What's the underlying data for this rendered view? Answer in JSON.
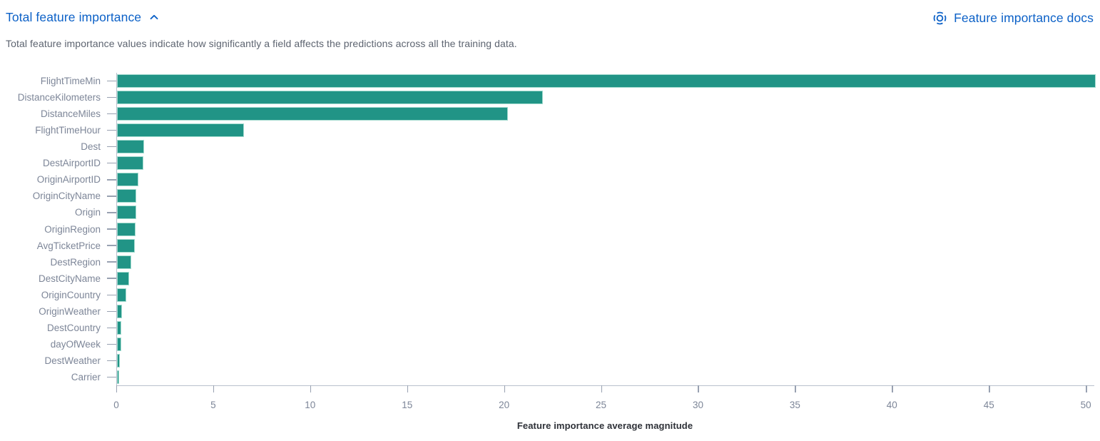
{
  "header": {
    "title": "Total feature importance",
    "docs_link_label": "Feature importance docs"
  },
  "description": "Total feature importance values indicate how significantly a field affects the predictions across all the training data.",
  "icons": {
    "collapse": "chevron-up-icon",
    "docs": "help-lifering-icon"
  },
  "colors": {
    "accent_blue": "#0c61c7",
    "bar_fill": "#219486",
    "bar_edge": "#a3dbcf",
    "axis_line": "#b9c0cd",
    "label_text": "#7d8698",
    "axis_title_text": "#2e3138"
  },
  "chart_data": {
    "type": "bar",
    "orientation": "horizontal",
    "title": "",
    "xlabel": "Feature importance average magnitude",
    "ylabel": "",
    "categories": [
      "FlightTimeMin",
      "DistanceKilometers",
      "DistanceMiles",
      "FlightTimeHour",
      "Dest",
      "DestAirportID",
      "OriginAirportID",
      "OriginCityName",
      "Origin",
      "OriginRegion",
      "AvgTicketPrice",
      "DestRegion",
      "DestCityName",
      "OriginCountry",
      "OriginWeather",
      "DestCountry",
      "dayOfWeek",
      "DestWeather",
      "Carrier"
    ],
    "values": [
      50.4,
      21.9,
      20.1,
      6.5,
      1.33,
      1.3,
      1.04,
      0.95,
      0.93,
      0.89,
      0.85,
      0.68,
      0.57,
      0.41,
      0.19,
      0.18,
      0.16,
      0.1,
      0.03
    ],
    "x_ticks": [
      0,
      5,
      10,
      15,
      20,
      25,
      30,
      35,
      40,
      45,
      50
    ],
    "xlim": [
      0,
      50.4
    ],
    "grid": false,
    "legend": false
  }
}
